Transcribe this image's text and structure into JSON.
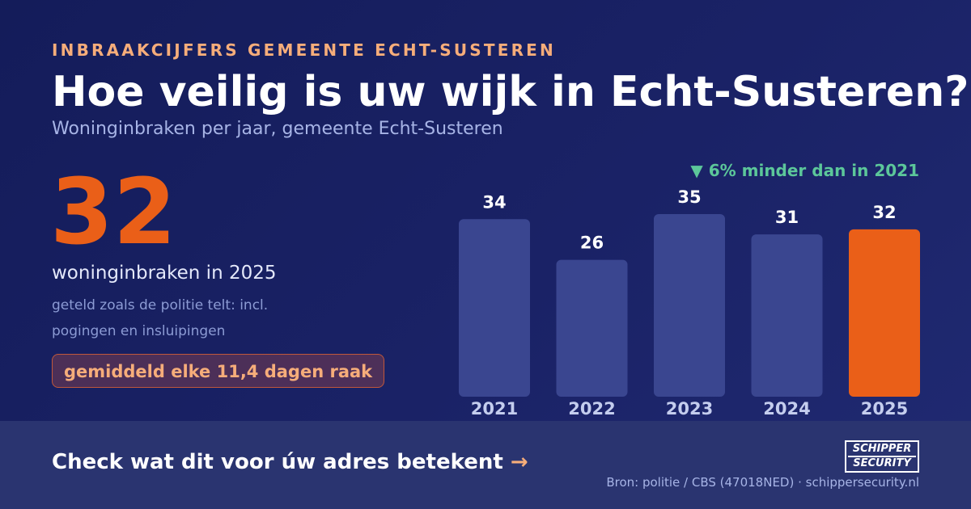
{
  "header": {
    "kicker": "INBRAAKCIJFERS GEMEENTE ECHT-SUSTEREN",
    "title": "Hoe veilig is uw wijk in Echt-Susteren?",
    "subtitle": "Woninginbraken per jaar, gemeente Echt-Susteren"
  },
  "highlight": {
    "number": "32",
    "label": "woninginbraken in 2025",
    "note": "geteld zoals de politie telt: incl. pogingen en insluipingen",
    "pill": "gemiddeld elke 11,4 dagen raak"
  },
  "change_label": "▼ 6% minder dan in 2021",
  "chart_data": {
    "type": "bar",
    "categories": [
      "2021",
      "2022",
      "2023",
      "2024",
      "2025"
    ],
    "values": [
      34,
      26,
      35,
      31,
      32
    ],
    "highlight_category": "2025",
    "title": "Woninginbraken per jaar, gemeente Echt-Susteren",
    "xlabel": "",
    "ylabel": "",
    "ylim": [
      0,
      35
    ],
    "grid": false,
    "legend": "none",
    "colors": {
      "bar": "#3a4690",
      "highlight": "#ea5f18",
      "value_label": "#ffffff",
      "tick_label": "#c4cdee"
    }
  },
  "footer": {
    "cta": "Check wat dit voor úw adres betekent",
    "cta_arrow": "→",
    "logo_line1": "SCHIPPER",
    "logo_line2": "SECURITY",
    "source": "Bron: politie / CBS (47018NED) · schippersecurity.nl"
  }
}
